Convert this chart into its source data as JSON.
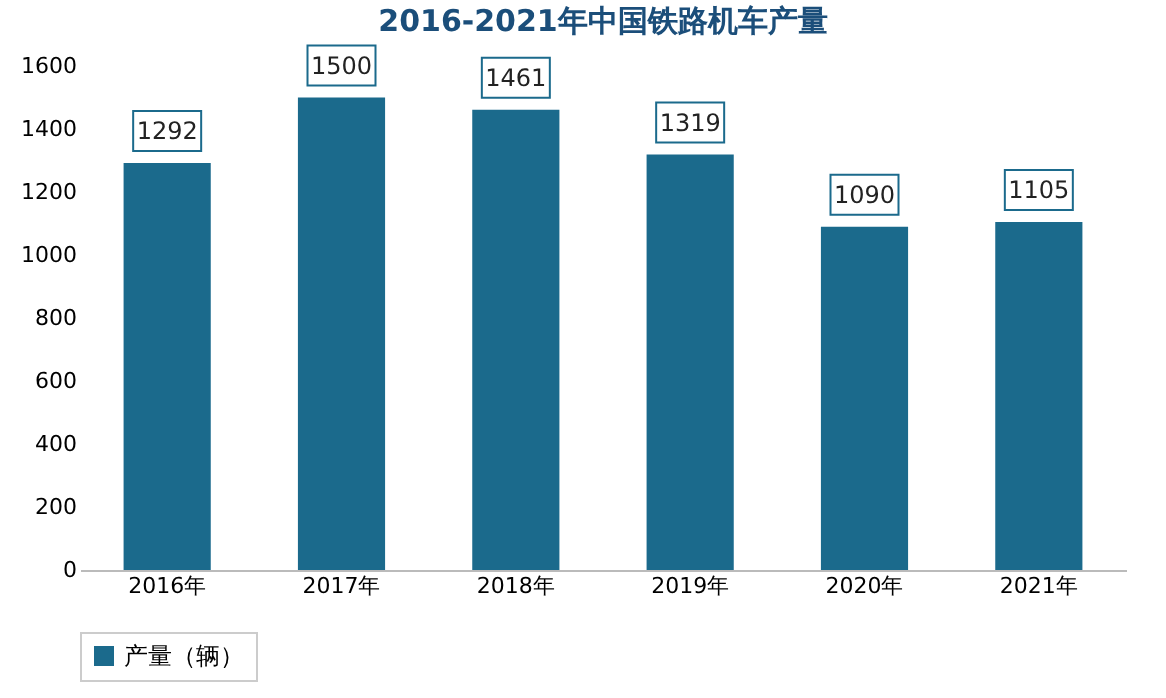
{
  "chart_data": {
    "type": "bar",
    "title": "2016-2021年中国铁路机车产量",
    "categories": [
      "2016年",
      "2017年",
      "2018年",
      "2019年",
      "2020年",
      "2021年"
    ],
    "series": [
      {
        "name": "产量（辆）",
        "color": "#1b6a8c",
        "values": [
          1292,
          1500,
          1461,
          1319,
          1090,
          1105
        ]
      }
    ],
    "ylim": [
      0,
      1600
    ],
    "yticks": [
      0,
      200,
      400,
      600,
      800,
      1000,
      1200,
      1400,
      1600
    ],
    "grid": false,
    "legend": "bottom",
    "data_labels": true
  }
}
